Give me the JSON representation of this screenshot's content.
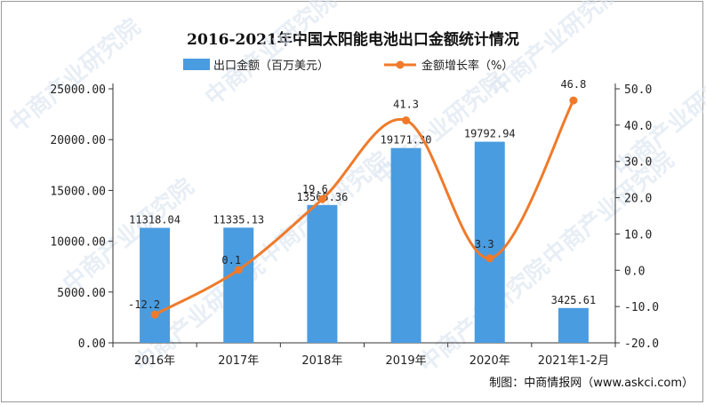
{
  "chart_data": {
    "type": "bar+line",
    "title": "2016-2021年中国太阳能电池出口金额统计情况",
    "categories": [
      "2016年",
      "2017年",
      "2018年",
      "2019年",
      "2020年",
      "2021年1-2月"
    ],
    "series": [
      {
        "name": "出口金额（百万美元）",
        "type": "bar",
        "axis": "left",
        "color": "#4a9ce0",
        "values": [
          11318.04,
          11335.13,
          13565.36,
          19171.3,
          19792.94,
          3425.61
        ],
        "labels": [
          "11318.04",
          "11335.13",
          "13565.36",
          "19171.30",
          "19792.94",
          "3425.61"
        ]
      },
      {
        "name": "金额增长率（%）",
        "type": "line",
        "axis": "right",
        "color": "#f07a2a",
        "values": [
          -12.2,
          0.1,
          19.6,
          41.3,
          3.3,
          46.8
        ],
        "labels": [
          "-12.2",
          "0.1",
          "19.6",
          "41.3",
          "3.3",
          "46.8"
        ]
      }
    ],
    "y_left": {
      "min": 0,
      "max": 25000,
      "ticks": [
        0,
        5000,
        10000,
        15000,
        20000,
        25000
      ],
      "tick_labels": [
        "0.00",
        "5000.00",
        "10000.00",
        "15000.00",
        "20000.00",
        "25000.00"
      ]
    },
    "y_right": {
      "min": -20,
      "max": 50,
      "ticks": [
        -20,
        -10,
        0,
        10,
        20,
        30,
        40,
        50
      ],
      "tick_labels": [
        "-20.0",
        "-10.0",
        "0.0",
        "10.0",
        "20.0",
        "30.0",
        "40.0",
        "50.0"
      ]
    },
    "grid": false,
    "legend_position": "top"
  },
  "watermark": "中商产业研究院",
  "source_note": "制图：中商情报网（www.askci.com）"
}
